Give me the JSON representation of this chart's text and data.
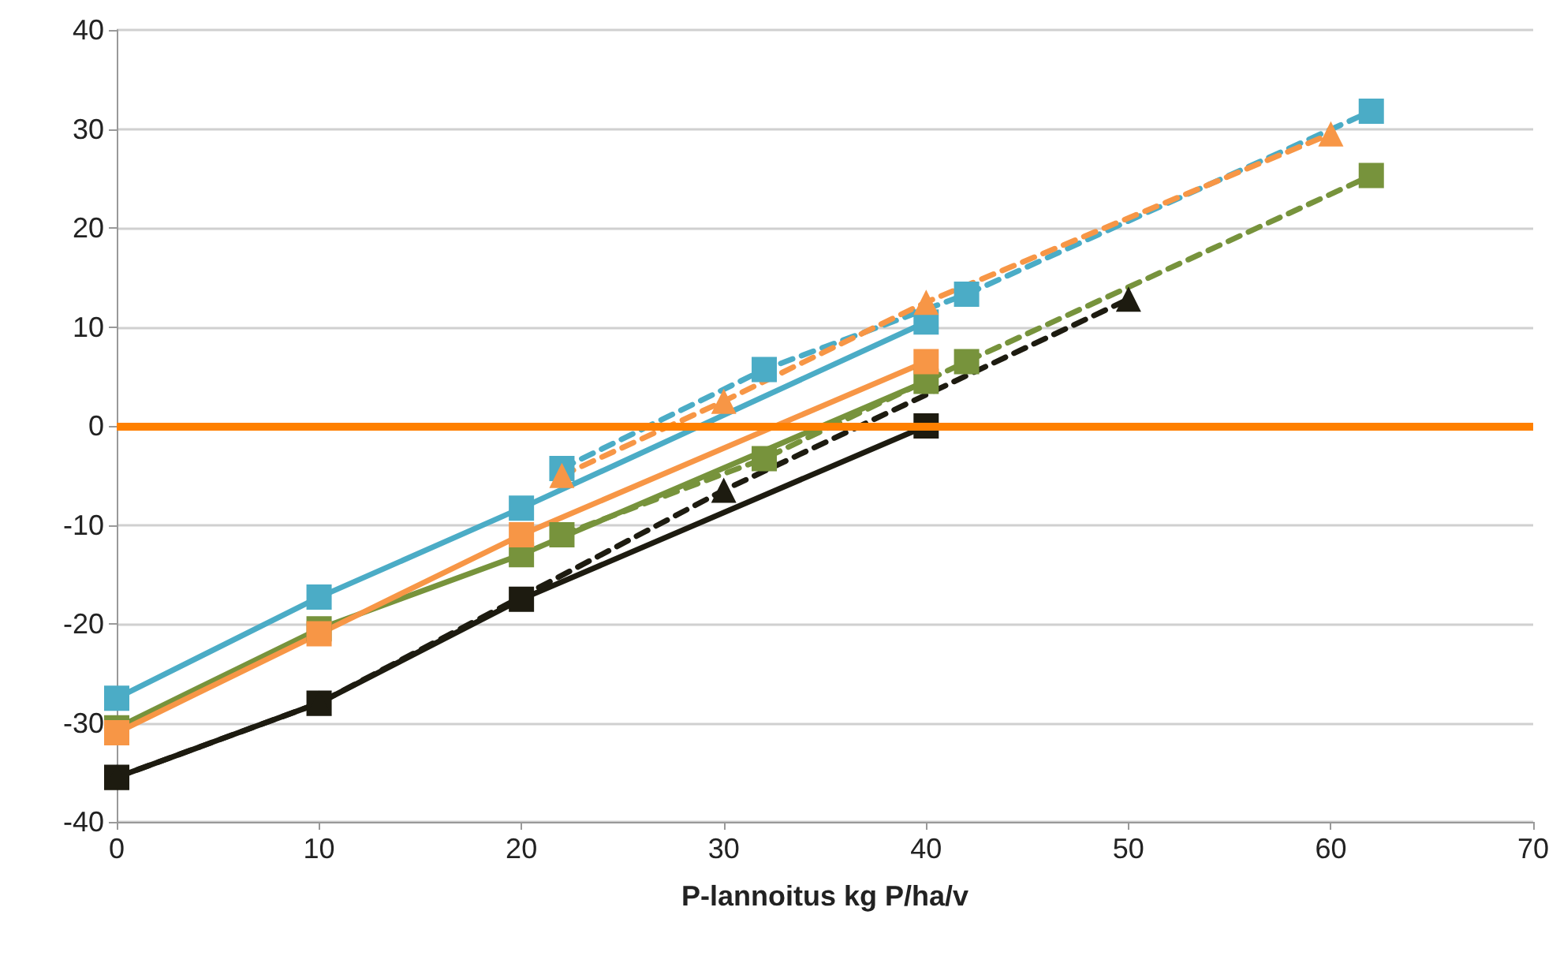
{
  "chart_data": {
    "type": "line",
    "xlabel": "P-lannoitus kg P/ha/v",
    "xlim": [
      0,
      70
    ],
    "xticks": [
      0,
      10,
      20,
      30,
      40,
      50,
      60,
      70
    ],
    "ylim": [
      -40,
      40
    ],
    "yticks": [
      -40,
      -30,
      -20,
      -10,
      0,
      10,
      20,
      30,
      40
    ],
    "grid": "y",
    "legend": false,
    "ref_lines": [
      {
        "axis": "y",
        "value": 0,
        "color": "#ff8000"
      }
    ],
    "series": [
      {
        "color": "#4bacc6",
        "marker": "square",
        "line_style": "solid",
        "x": [
          0,
          10,
          20,
          40
        ],
        "values": [
          -27.5,
          -17.3,
          -8.3,
          10.5
        ]
      },
      {
        "color": "#77933c",
        "marker": "square",
        "line_style": "solid",
        "x": [
          0,
          10,
          20,
          40
        ],
        "values": [
          -30.5,
          -20.5,
          -13,
          4.5
        ]
      },
      {
        "color": "#f79646",
        "marker": "square",
        "line_style": "solid",
        "x": [
          0,
          10,
          20,
          40
        ],
        "values": [
          -31,
          -21,
          -11,
          6.5
        ]
      },
      {
        "color": "#1d1b10",
        "marker": "square",
        "line_style": "solid",
        "x": [
          0,
          10,
          20,
          40
        ],
        "values": [
          -35.5,
          -28,
          -17.5,
          0
        ]
      },
      {
        "color": "#4bacc6",
        "marker": "square",
        "line_style": "dashed",
        "x": [
          22,
          32,
          42,
          62
        ],
        "values": [
          -4.3,
          5.7,
          13.3,
          31.8
        ]
      },
      {
        "color": "#f79646",
        "marker": "triangle",
        "line_style": "dashed",
        "x": [
          22,
          30,
          40,
          60
        ],
        "values": [
          -5,
          2.5,
          12.5,
          29.5
        ]
      },
      {
        "color": "#77933c",
        "marker": "square",
        "line_style": "dashed",
        "x": [
          22,
          32,
          42,
          62
        ],
        "values": [
          -11,
          -3.3,
          6.5,
          25.3
        ]
      },
      {
        "color": "#1d1b10",
        "marker": "triangle",
        "line_style": "dashed",
        "x": [
          0,
          10,
          30,
          50
        ],
        "values": [
          -35.5,
          -28,
          -6.5,
          12.8
        ]
      }
    ]
  }
}
